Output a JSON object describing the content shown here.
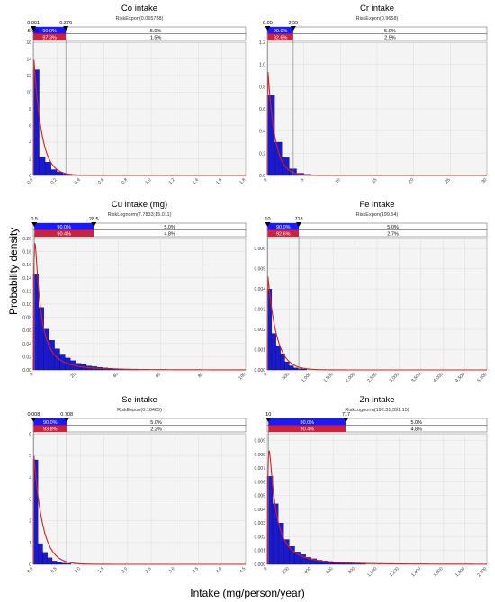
{
  "figure": {
    "ylabel": "Probability density",
    "xlabel": "Intake (mg/person/year)"
  },
  "colors": {
    "bar": "#1a1acc",
    "fit": "#d42020",
    "band_top": "#1a1aff",
    "band_bottom": "#d0203a",
    "plot_bg": "#f4f4f4",
    "grid": "#dcdcdc"
  },
  "chart_data": [
    {
      "type": "bar",
      "title": "Co intake",
      "subtitle": "RiskExpon(0.065788)",
      "xlim": [
        0,
        1.8
      ],
      "ylim": [
        0,
        16
      ],
      "xticks": [
        "0.0",
        "0.2",
        "0.4",
        "0.6",
        "0.8",
        "1.0",
        "1.2",
        "1.4",
        "1.6",
        "1.8"
      ],
      "yticks": [
        "0",
        "2",
        "4",
        "6",
        "8",
        "10",
        "12",
        "14",
        "16"
      ],
      "bin_width": 0.05,
      "values": [
        12.7,
        2.2,
        1.6,
        0.7,
        0.4,
        0.2,
        0.1,
        0.05,
        0.03
      ],
      "fit": {
        "dist": "expon",
        "mean": 0.065788
      },
      "markers": {
        "left": "0.001",
        "right": "0.276",
        "left_x": 0.001,
        "right_x": 0.276
      },
      "band": {
        "top": [
          "5.0%",
          "90.0%",
          "5.0%"
        ],
        "bottom": [
          "",
          "97.3%",
          "1.5%"
        ]
      }
    },
    {
      "type": "bar",
      "title": "Cr intake",
      "subtitle": "RiskExpon(0.9658)",
      "xlim": [
        0,
        30
      ],
      "ylim": [
        0,
        1.2
      ],
      "xticks": [
        "0",
        "5",
        "10",
        "15",
        "20",
        "25",
        "30"
      ],
      "yticks": [
        "0.0",
        "0.2",
        "0.4",
        "0.6",
        "0.8",
        "1.0",
        "1.2"
      ],
      "bin_width": 1,
      "values": [
        0.72,
        0.3,
        0.16,
        0.06,
        0.02,
        0.01
      ],
      "fit": {
        "dist": "expon",
        "mean": 0.9658
      },
      "markers": {
        "left": "0.05",
        "right": "3.55",
        "left_x": 0.05,
        "right_x": 3.55
      },
      "band": {
        "top": [
          "",
          "90.0%",
          "5.0%"
        ],
        "bottom": [
          "",
          "92.6%",
          "2.5%"
        ]
      }
    },
    {
      "type": "bar",
      "title": "Cu intake (mg)",
      "subtitle": "RiskLognorm(7.7833;15.011)",
      "xlim": [
        0,
        100
      ],
      "ylim": [
        0,
        0.2
      ],
      "xticks": [
        "0",
        "20",
        "40",
        "60",
        "80",
        "100"
      ],
      "yticks": [
        "0.00",
        "0.02",
        "0.04",
        "0.06",
        "0.08",
        "0.10",
        "0.12",
        "0.14",
        "0.16",
        "0.18",
        "0.20"
      ],
      "bin_width": 2.5,
      "values": [
        0.145,
        0.095,
        0.062,
        0.045,
        0.032,
        0.024,
        0.018,
        0.014,
        0.01,
        0.008,
        0.006,
        0.005,
        0.004,
        0.003,
        0.0025,
        0.002,
        0.0015,
        0.001,
        0.001,
        0.0008
      ],
      "fit": {
        "dist": "lognorm",
        "mean": 7.7833,
        "sd": 15.011
      },
      "markers": {
        "left": "0.5",
        "right": "28.5",
        "left_x": 0.5,
        "right_x": 28.5
      },
      "band": {
        "top": [
          "",
          "90.0%",
          "5.0%"
        ],
        "bottom": [
          "",
          "90.4%",
          "4.8%"
        ]
      }
    },
    {
      "type": "bar",
      "title": "Fe intake",
      "subtitle": "RiskExpon(199.54)",
      "xlim": [
        0,
        5000
      ],
      "ylim": [
        0,
        0.0065
      ],
      "xticks": [
        "0",
        "500",
        "1,000",
        "1,500",
        "2,000",
        "2,500",
        "3,000",
        "3,500",
        "4,000",
        "4,500",
        "5,000"
      ],
      "yticks": [
        "0.000",
        "0.001",
        "0.002",
        "0.003",
        "0.004",
        "0.005",
        "0.006"
      ],
      "bin_width": 100,
      "values": [
        0.004,
        0.0018,
        0.0012,
        0.0008,
        0.0004,
        0.0002,
        0.0001,
        6e-05,
        4e-05
      ],
      "fit": {
        "dist": "expon",
        "mean": 199.54
      },
      "markers": {
        "left": "10",
        "right": "718",
        "left_x": 10,
        "right_x": 718
      },
      "band": {
        "top": [
          "",
          "90.0%",
          "5.0%"
        ],
        "bottom": [
          "",
          "92.6%",
          "2.7%"
        ]
      }
    },
    {
      "type": "bar",
      "title": "Se intake",
      "subtitle": "RiskExpon(0.18485)",
      "xlim": [
        0,
        4.5
      ],
      "ylim": [
        0,
        6
      ],
      "xticks": [
        "0.0",
        "0.5",
        "1.0",
        "1.5",
        "2.0",
        "2.5",
        "3.0",
        "3.5",
        "4.0",
        "4.5"
      ],
      "yticks": [
        "0",
        "1",
        "2",
        "3",
        "4",
        "5",
        "6"
      ],
      "bin_width": 0.1,
      "values": [
        4.8,
        0.95,
        0.55,
        0.3,
        0.15,
        0.1,
        0.05,
        0.03
      ],
      "fit": {
        "dist": "expon",
        "mean": 0.18485
      },
      "markers": {
        "left": "0.008",
        "right": "0.708",
        "left_x": 0.008,
        "right_x": 0.708
      },
      "band": {
        "top": [
          "",
          "90.0%",
          "5.0%"
        ],
        "bottom": [
          "",
          "93.8%",
          "2.2%"
        ]
      }
    },
    {
      "type": "bar",
      "title": "Zn intake",
      "subtitle": "RiskLognorm(192.31;391.15)",
      "xlim": [
        0,
        2000
      ],
      "ylim": [
        0,
        0.0095
      ],
      "xticks": [
        "0",
        "200",
        "400",
        "600",
        "800",
        "1,000",
        "1,200",
        "1,400",
        "1,600",
        "1,800",
        "2,000"
      ],
      "yticks": [
        "0.000",
        "0.001",
        "0.002",
        "0.003",
        "0.004",
        "0.005",
        "0.006",
        "0.007",
        "0.008",
        "0.009"
      ],
      "bin_width": 50,
      "values": [
        0.0064,
        0.0044,
        0.003,
        0.0018,
        0.0013,
        0.0009,
        0.0007,
        0.0005,
        0.0004,
        0.0003,
        0.00025,
        0.0002,
        0.00015,
        0.00012,
        0.0001,
        8e-05,
        6e-05,
        5e-05
      ],
      "fit": {
        "dist": "lognorm",
        "mean": 192.31,
        "sd": 391.15
      },
      "markers": {
        "left": "10",
        "right": "717",
        "left_x": 10,
        "right_x": 717
      },
      "band": {
        "top": [
          "",
          "90.0%",
          "5.0%"
        ],
        "bottom": [
          "",
          "90.4%",
          "4.8%"
        ]
      }
    }
  ]
}
